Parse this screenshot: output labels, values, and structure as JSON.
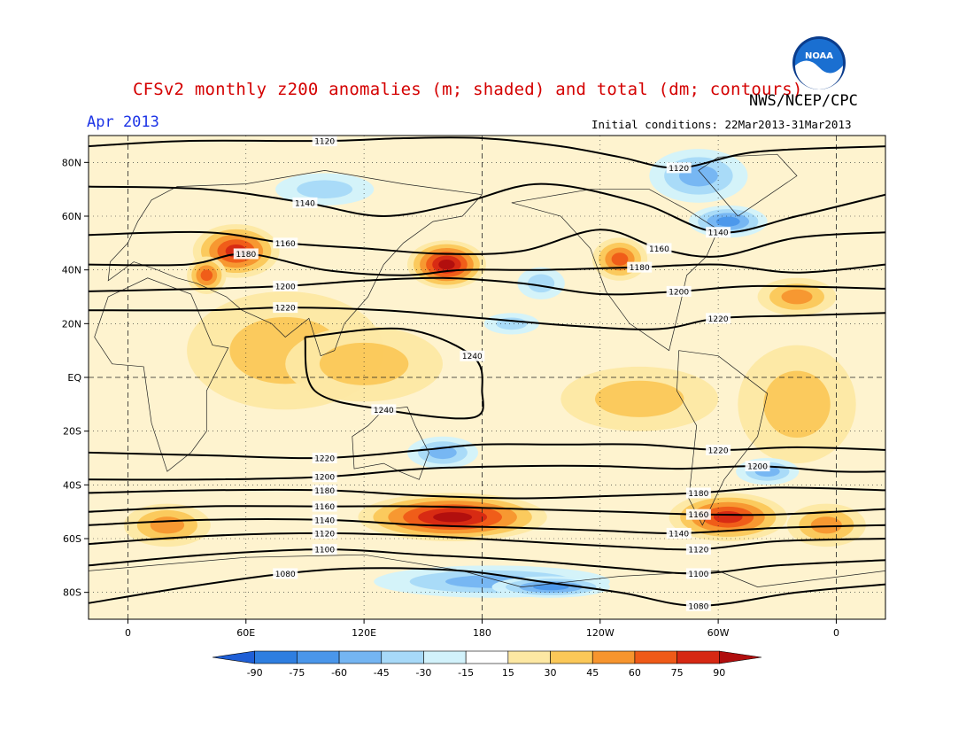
{
  "header": {
    "title": "CFSv2 monthly z200 anomalies (m; shaded) and total (dm; contours)",
    "agency": "NWS/NCEP/CPC",
    "logo_text": "NOAA",
    "month": "Apr 2013",
    "initial_conditions": "Initial conditions: 22Mar2013-31Mar2013"
  },
  "map": {
    "lon_range": [
      -20,
      385
    ],
    "lat_range": [
      -90,
      90
    ],
    "x_ticks": [
      {
        "lon": 0,
        "label": "0"
      },
      {
        "lon": 60,
        "label": "60E"
      },
      {
        "lon": 120,
        "label": "120E"
      },
      {
        "lon": 180,
        "label": "180"
      },
      {
        "lon": 240,
        "label": "120W"
      },
      {
        "lon": 300,
        "label": "60W"
      },
      {
        "lon": 360,
        "label": "0"
      }
    ],
    "y_ticks": [
      {
        "lat": 80,
        "label": "80N"
      },
      {
        "lat": 60,
        "label": "60N"
      },
      {
        "lat": 40,
        "label": "40N"
      },
      {
        "lat": 20,
        "label": "20N"
      },
      {
        "lat": 0,
        "label": "EQ"
      },
      {
        "lat": -20,
        "label": "20S"
      },
      {
        "lat": -40,
        "label": "40S"
      },
      {
        "lat": -60,
        "label": "60S"
      },
      {
        "lat": -80,
        "label": "80S"
      }
    ],
    "grid": "dotted",
    "anomaly_blobs": [
      {
        "lon": 55,
        "lat": 47,
        "rlon": 22,
        "rlat": 10,
        "value": 75
      },
      {
        "lon": 40,
        "lat": 38,
        "rlon": 10,
        "rlat": 7,
        "value": 60
      },
      {
        "lon": 162,
        "lat": 42,
        "rlon": 20,
        "rlat": 9,
        "value": 90
      },
      {
        "lon": 250,
        "lat": 44,
        "rlon": 14,
        "rlat": 8,
        "value": 60
      },
      {
        "lon": 340,
        "lat": 30,
        "rlon": 20,
        "rlat": 7,
        "value": 45
      },
      {
        "lon": 305,
        "lat": -52,
        "rlon": 30,
        "rlat": 9,
        "value": 75
      },
      {
        "lon": 165,
        "lat": -52,
        "rlon": 48,
        "rlat": 9,
        "value": 90
      },
      {
        "lon": 355,
        "lat": -55,
        "rlon": 20,
        "rlat": 8,
        "value": 45
      },
      {
        "lon": 20,
        "lat": -55,
        "rlon": 22,
        "rlat": 8,
        "value": 45
      },
      {
        "lon": 80,
        "lat": 10,
        "rlon": 50,
        "rlat": 22,
        "value": 30
      },
      {
        "lon": 340,
        "lat": -10,
        "rlon": 30,
        "rlat": 22,
        "value": 30
      },
      {
        "lon": 260,
        "lat": -8,
        "rlon": 40,
        "rlat": 12,
        "value": 30
      },
      {
        "lon": 120,
        "lat": 5,
        "rlon": 40,
        "rlat": 14,
        "value": 30
      },
      {
        "lon": 290,
        "lat": 75,
        "rlon": 25,
        "rlat": 10,
        "value": -45
      },
      {
        "lon": 305,
        "lat": 58,
        "rlon": 20,
        "rlat": 6,
        "value": -60
      },
      {
        "lon": 160,
        "lat": -28,
        "rlon": 18,
        "rlat": 6,
        "value": -45
      },
      {
        "lon": 325,
        "lat": -35,
        "rlon": 16,
        "rlat": 5,
        "value": -45
      },
      {
        "lon": 185,
        "lat": -76,
        "rlon": 60,
        "rlat": 6,
        "value": -45
      },
      {
        "lon": 215,
        "lat": -78,
        "rlon": 30,
        "rlat": 4,
        "value": -60
      },
      {
        "lon": 100,
        "lat": 70,
        "rlon": 25,
        "rlat": 6,
        "value": -30
      },
      {
        "lon": 210,
        "lat": 35,
        "rlon": 12,
        "rlat": 6,
        "value": -30
      },
      {
        "lon": 195,
        "lat": 20,
        "rlon": 14,
        "rlat": 4,
        "value": -30
      }
    ],
    "contours": [
      {
        "label": "1120",
        "pts": [
          [
            -20,
            86
          ],
          [
            30,
            88
          ],
          [
            100,
            88
          ],
          [
            140,
            89
          ],
          [
            180,
            89
          ],
          [
            220,
            86
          ],
          [
            250,
            82
          ],
          [
            280,
            78
          ],
          [
            320,
            84
          ],
          [
            385,
            86
          ]
        ]
      },
      {
        "label": "1140",
        "pts": [
          [
            -20,
            71
          ],
          [
            40,
            70
          ],
          [
            90,
            65
          ],
          [
            130,
            60
          ],
          [
            170,
            65
          ],
          [
            210,
            72
          ],
          [
            260,
            65
          ],
          [
            300,
            54
          ],
          [
            340,
            60
          ],
          [
            385,
            68
          ]
        ]
      },
      {
        "label": "1160",
        "pts": [
          [
            -20,
            53
          ],
          [
            40,
            54
          ],
          [
            80,
            50
          ],
          [
            120,
            48
          ],
          [
            160,
            46
          ],
          [
            200,
            47
          ],
          [
            240,
            55
          ],
          [
            270,
            48
          ],
          [
            300,
            45
          ],
          [
            340,
            52
          ],
          [
            385,
            54
          ]
        ]
      },
      {
        "label": "1180",
        "pts": [
          [
            -20,
            42
          ],
          [
            30,
            42
          ],
          [
            60,
            46
          ],
          [
            100,
            40
          ],
          [
            140,
            38
          ],
          [
            170,
            40
          ],
          [
            210,
            40
          ],
          [
            260,
            41
          ],
          [
            300,
            42
          ],
          [
            340,
            39
          ],
          [
            385,
            42
          ]
        ]
      },
      {
        "label": "1200",
        "pts": [
          [
            -20,
            32
          ],
          [
            40,
            33
          ],
          [
            80,
            34
          ],
          [
            120,
            36
          ],
          [
            160,
            37
          ],
          [
            200,
            35
          ],
          [
            240,
            31
          ],
          [
            280,
            32
          ],
          [
            320,
            34
          ],
          [
            385,
            33
          ]
        ]
      },
      {
        "label": "1220",
        "pts": [
          [
            -20,
            25
          ],
          [
            40,
            25
          ],
          [
            80,
            26
          ],
          [
            130,
            25
          ],
          [
            180,
            22
          ],
          [
            230,
            19
          ],
          [
            270,
            18
          ],
          [
            300,
            22
          ],
          [
            340,
            23
          ],
          [
            385,
            24
          ]
        ]
      },
      {
        "label": "1240",
        "pts": [
          [
            90,
            15
          ],
          [
            140,
            18
          ],
          [
            175,
            8
          ],
          [
            180,
            -5
          ],
          [
            175,
            -15
          ],
          [
            130,
            -12
          ],
          [
            95,
            -5
          ],
          [
            90,
            15
          ]
        ]
      },
      {
        "label": "1220",
        "pts": [
          [
            -20,
            -28
          ],
          [
            40,
            -29
          ],
          [
            100,
            -30
          ],
          [
            150,
            -27
          ],
          [
            180,
            -25
          ],
          [
            220,
            -25
          ],
          [
            260,
            -25
          ],
          [
            300,
            -27
          ],
          [
            340,
            -26
          ],
          [
            385,
            -27
          ]
        ]
      },
      {
        "label": "1200",
        "pts": [
          [
            -20,
            -38
          ],
          [
            40,
            -38
          ],
          [
            100,
            -37
          ],
          [
            150,
            -34
          ],
          [
            200,
            -33
          ],
          [
            240,
            -33
          ],
          [
            280,
            -34
          ],
          [
            320,
            -33
          ],
          [
            360,
            -35
          ],
          [
            385,
            -35
          ]
        ]
      },
      {
        "label": "1180",
        "pts": [
          [
            -20,
            -43
          ],
          [
            40,
            -42
          ],
          [
            100,
            -42
          ],
          [
            150,
            -44
          ],
          [
            200,
            -45
          ],
          [
            250,
            -44
          ],
          [
            290,
            -43
          ],
          [
            330,
            -41
          ],
          [
            385,
            -42
          ]
        ]
      },
      {
        "label": "1160",
        "pts": [
          [
            -20,
            -50
          ],
          [
            40,
            -48
          ],
          [
            100,
            -48
          ],
          [
            150,
            -48
          ],
          [
            200,
            -49
          ],
          [
            250,
            -50
          ],
          [
            290,
            -51
          ],
          [
            330,
            -51
          ],
          [
            385,
            -49
          ]
        ]
      },
      {
        "label": "1140",
        "pts": [
          [
            -20,
            -55
          ],
          [
            40,
            -53
          ],
          [
            100,
            -53
          ],
          [
            150,
            -55
          ],
          [
            200,
            -56
          ],
          [
            240,
            -57
          ],
          [
            280,
            -58
          ],
          [
            330,
            -56
          ],
          [
            385,
            -55
          ]
        ]
      },
      {
        "label": "1120",
        "pts": [
          [
            -20,
            -62
          ],
          [
            40,
            -59
          ],
          [
            100,
            -58
          ],
          [
            150,
            -59
          ],
          [
            200,
            -61
          ],
          [
            250,
            -63
          ],
          [
            290,
            -64
          ],
          [
            330,
            -61
          ],
          [
            385,
            -60
          ]
        ]
      },
      {
        "label": "1100",
        "pts": [
          [
            -20,
            -70
          ],
          [
            40,
            -66
          ],
          [
            100,
            -64
          ],
          [
            150,
            -66
          ],
          [
            200,
            -68
          ],
          [
            250,
            -71
          ],
          [
            290,
            -73
          ],
          [
            330,
            -70
          ],
          [
            385,
            -68
          ]
        ]
      },
      {
        "label": "1080",
        "pts": [
          [
            -20,
            -84
          ],
          [
            30,
            -78
          ],
          [
            80,
            -73
          ],
          [
            120,
            -71
          ],
          [
            170,
            -72
          ],
          [
            210,
            -76
          ],
          [
            250,
            -80
          ],
          [
            290,
            -85
          ],
          [
            340,
            -80
          ],
          [
            385,
            -77
          ]
        ]
      }
    ],
    "colorbar": {
      "labels": [
        "-90",
        "-75",
        "-60",
        "-45",
        "-30",
        "-15",
        "15",
        "30",
        "45",
        "60",
        "75",
        "90"
      ],
      "colors": [
        "#1f5fd6",
        "#2e7ee0",
        "#4a96ea",
        "#74b5f2",
        "#a7d9f8",
        "#d2f2fb",
        "#ffffff",
        "#fde8a3",
        "#fbc858",
        "#f7952e",
        "#ef5a18",
        "#d62813",
        "#b00e0e"
      ]
    }
  }
}
